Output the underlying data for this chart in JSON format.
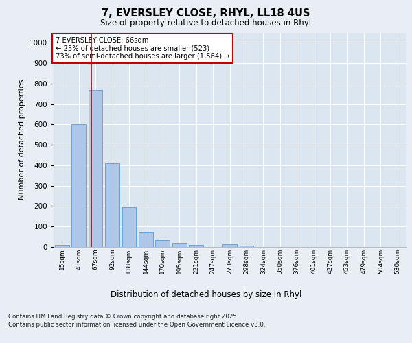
{
  "title1": "7, EVERSLEY CLOSE, RHYL, LL18 4US",
  "title2": "Size of property relative to detached houses in Rhyl",
  "xlabel": "Distribution of detached houses by size in Rhyl",
  "ylabel": "Number of detached properties",
  "categories": [
    "15sqm",
    "41sqm",
    "67sqm",
    "92sqm",
    "118sqm",
    "144sqm",
    "170sqm",
    "195sqm",
    "221sqm",
    "247sqm",
    "273sqm",
    "298sqm",
    "324sqm",
    "350sqm",
    "376sqm",
    "401sqm",
    "427sqm",
    "453sqm",
    "479sqm",
    "504sqm",
    "530sqm"
  ],
  "values": [
    10,
    600,
    770,
    410,
    195,
    75,
    35,
    20,
    10,
    0,
    13,
    8,
    0,
    0,
    0,
    0,
    0,
    0,
    0,
    0,
    0
  ],
  "bar_color": "#aec6e8",
  "bar_edgecolor": "#5b9bd5",
  "ylim": [
    0,
    1050
  ],
  "yticks": [
    0,
    100,
    200,
    300,
    400,
    500,
    600,
    700,
    800,
    900,
    1000
  ],
  "vline_x": 1.77,
  "vline_color": "#c00000",
  "annotation_text": "7 EVERSLEY CLOSE: 66sqm\n← 25% of detached houses are smaller (523)\n73% of semi-detached houses are larger (1,564) →",
  "annotation_box_color": "#c00000",
  "background_color": "#dce6f0",
  "fig_facecolor": "#e8eef4",
  "footer1": "Contains HM Land Registry data © Crown copyright and database right 2025.",
  "footer2": "Contains public sector information licensed under the Open Government Licence v3.0."
}
